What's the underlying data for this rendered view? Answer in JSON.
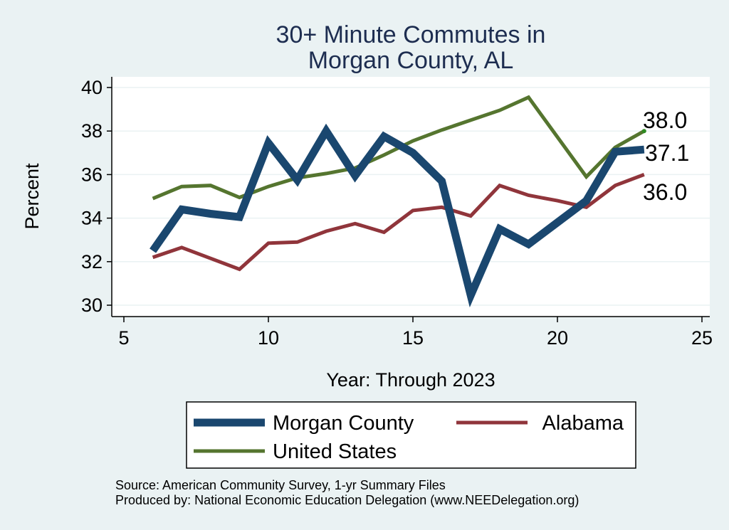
{
  "chart_data": {
    "type": "line",
    "title_lines": [
      "30+ Minute Commutes in",
      "Morgan County, AL"
    ],
    "xlabel": "Year: Through 2023",
    "ylabel": "Percent",
    "xlim": [
      5,
      25
    ],
    "ylim": [
      30,
      40
    ],
    "xticks": [
      5,
      10,
      15,
      20,
      25
    ],
    "yticks": [
      30,
      32,
      34,
      36,
      38,
      40
    ],
    "grid": "horizontal",
    "legend_position": "bottom",
    "x": [
      6,
      7,
      8,
      9,
      10,
      11,
      12,
      13,
      14,
      15,
      16,
      17,
      18,
      19,
      20,
      21,
      22,
      23
    ],
    "series": [
      {
        "name": "Morgan County",
        "color": "#1a476f",
        "values": [
          32.5,
          34.4,
          34.2,
          34.05,
          37.45,
          35.75,
          38.0,
          35.95,
          37.75,
          37.0,
          35.7,
          30.45,
          33.5,
          32.8,
          33.8,
          34.8,
          37.05,
          37.15
        ],
        "end_label": "37.1"
      },
      {
        "name": "Alabama",
        "color": "#90353b",
        "values": [
          32.2,
          32.65,
          32.15,
          31.65,
          32.85,
          32.9,
          33.4,
          33.75,
          33.35,
          34.35,
          34.5,
          34.1,
          35.5,
          35.05,
          34.8,
          34.5,
          35.5,
          36.0
        ],
        "end_label": "36.0"
      },
      {
        "name": "United States",
        "color": "#55752f",
        "values": [
          34.9,
          35.45,
          35.5,
          34.95,
          35.45,
          35.85,
          36.05,
          36.3,
          36.9,
          37.55,
          38.05,
          38.5,
          38.95,
          39.55,
          null,
          35.9,
          37.25,
          38.0
        ],
        "end_label": "38.0"
      }
    ],
    "legend": [
      {
        "series": "Morgan County"
      },
      {
        "series": "Alabama"
      },
      {
        "series": "United States"
      }
    ]
  },
  "notes": {
    "source": "Source: American Community Survey, 1-yr Summary Files",
    "produced": "Produced by: National Economic Education Delegation (www.NEEDelegation.org)"
  }
}
